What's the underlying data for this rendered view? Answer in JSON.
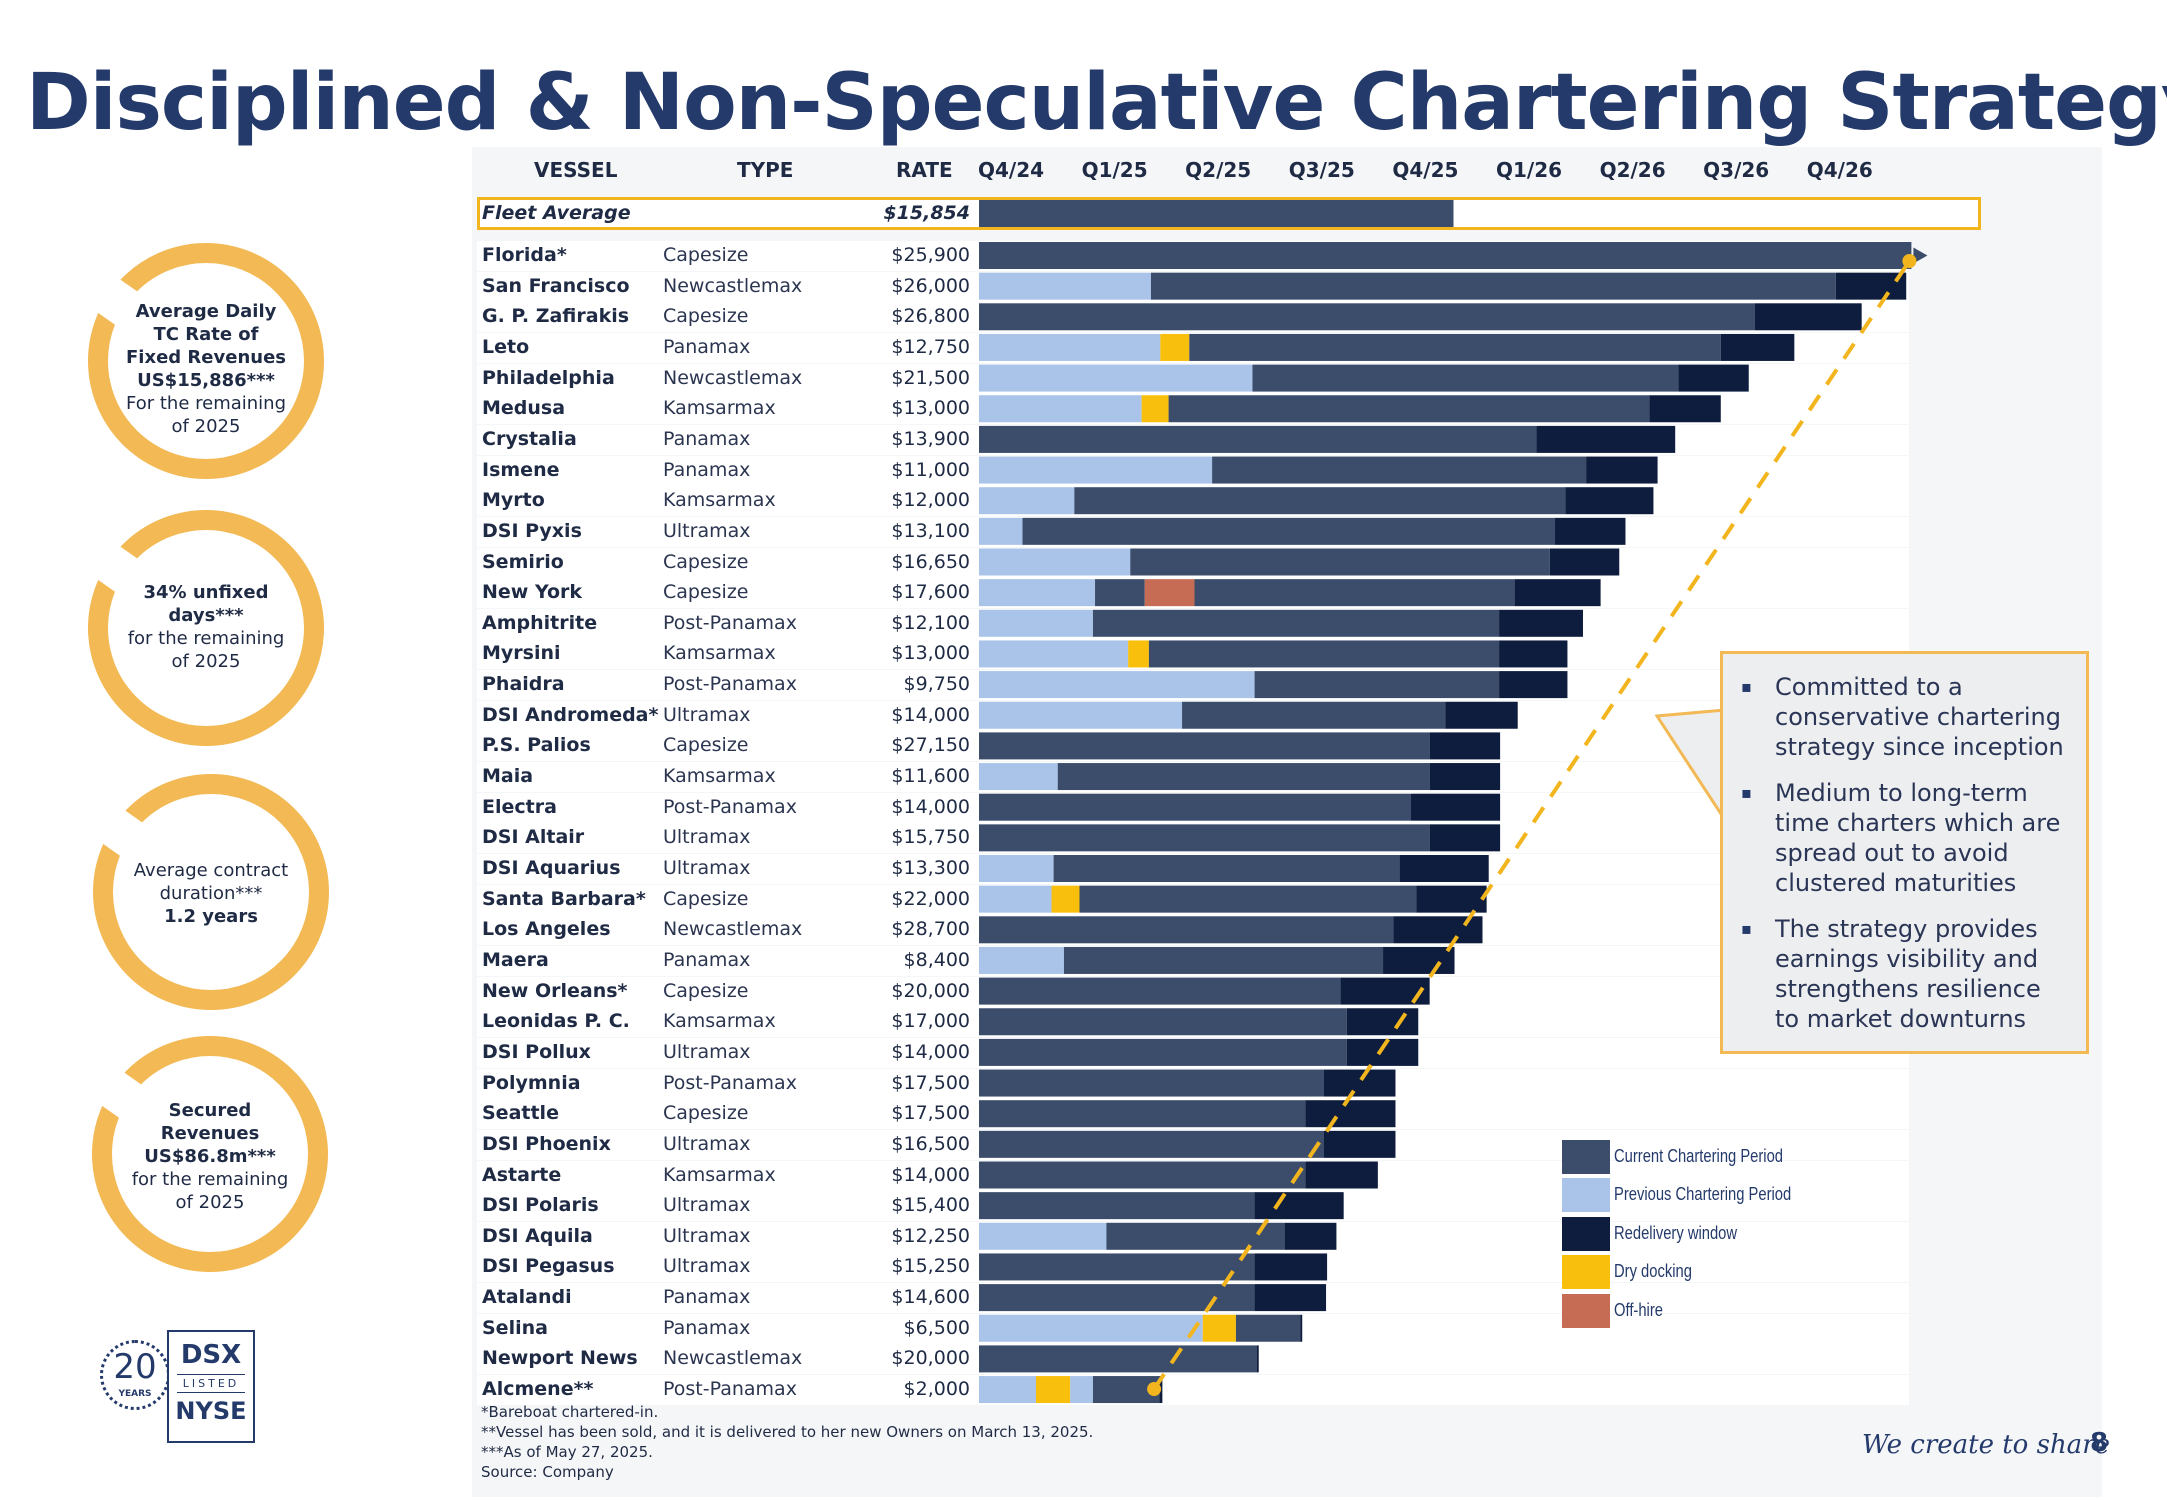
{
  "page": {
    "title": "Disciplined & Non-Speculative Chartering Strategy",
    "tagline": "We create to share",
    "page_number": "8"
  },
  "headers": {
    "vessel": "VESSEL",
    "type": "TYPE",
    "rate": "RATE"
  },
  "fleet_average": {
    "label": "Fleet Average",
    "rate": "$15,854"
  },
  "circles": [
    {
      "lines": [
        "Average Daily",
        "TC Rate of",
        "Fixed Revenues",
        "US$15,886***",
        "For the remaining",
        "of 2025"
      ]
    },
    {
      "lines": [
        "34% unfixed",
        "days***",
        "for the remaining",
        "of 2025"
      ]
    },
    {
      "lines": [
        "Average contract",
        "duration***",
        "1.2 years"
      ]
    },
    {
      "lines": [
        "Secured",
        "Revenues",
        "US$86.8m***",
        "for the remaining",
        "of 2025"
      ]
    }
  ],
  "callout": {
    "bullets": [
      "Committed to a conservative chartering strategy since inception",
      "Medium to long-term time charters which are spread out to avoid clustered maturities",
      "The strategy provides earnings visibility and strengthens resilience to market downturns"
    ]
  },
  "footnotes": [
    "*Bareboat chartered-in.",
    "**Vessel has been sold, and it is delivered to her new Owners on March 13, 2025.",
    "***As of May 27, 2025.",
    "Source: Company"
  ],
  "logo": {
    "years": "20",
    "years_word": "YEARS",
    "dsx": "DSX",
    "listed": "LISTED",
    "nyse": "NYSE"
  },
  "colors": {
    "current": "#3b4d6b",
    "previous": "#a9c4e8",
    "redelivery": "#0e1d3d",
    "drydock": "#f8bf0c",
    "offhire": "#c66c55",
    "accent": "#f2b955",
    "title": "#243a6b"
  },
  "chart_data": {
    "type": "gantt",
    "quarters": [
      "Q4/24",
      "Q1/25",
      "Q2/25",
      "Q3/25",
      "Q4/25",
      "Q1/26",
      "Q2/26",
      "Q3/26",
      "Q4/26"
    ],
    "x_unit": "quarters elapsed from start of Q4/24",
    "xlim": [
      0,
      9
    ],
    "fleet_average_end": 4.58,
    "legend": [
      {
        "key": "current",
        "label": "Current Chartering Period"
      },
      {
        "key": "previous",
        "label": "Previous Chartering Period"
      },
      {
        "key": "redelivery",
        "label": "Redelivery window"
      },
      {
        "key": "drydock",
        "label": "Dry docking"
      },
      {
        "key": "offhire",
        "label": "Off-hire"
      }
    ],
    "vessels": [
      {
        "name": "Florida*",
        "type": "Capesize",
        "rate": "$25,900",
        "segments": [
          [
            "current",
            0,
            9.0
          ]
        ],
        "arrow": true
      },
      {
        "name": "San Francisco",
        "type": "Newcastlemax",
        "rate": "$26,000",
        "segments": [
          [
            "previous",
            0,
            1.66
          ],
          [
            "current",
            1.66,
            8.27
          ],
          [
            "redelivery",
            8.27,
            8.95
          ]
        ]
      },
      {
        "name": "G. P. Zafirakis",
        "type": "Capesize",
        "rate": "$26,800",
        "segments": [
          [
            "current",
            0,
            7.49
          ],
          [
            "redelivery",
            7.49,
            8.52
          ]
        ]
      },
      {
        "name": "Leto",
        "type": "Panamax",
        "rate": "$12,750",
        "segments": [
          [
            "previous",
            0,
            1.75
          ],
          [
            "drydock",
            1.75,
            2.03
          ],
          [
            "current",
            2.03,
            7.16
          ],
          [
            "redelivery",
            7.16,
            7.87
          ]
        ]
      },
      {
        "name": "Philadelphia",
        "type": "Newcastlemax",
        "rate": "$21,500",
        "segments": [
          [
            "previous",
            0,
            2.64
          ],
          [
            "current",
            2.64,
            6.75
          ],
          [
            "redelivery",
            6.75,
            7.43
          ]
        ]
      },
      {
        "name": "Medusa",
        "type": "Kamsarmax",
        "rate": "$13,000",
        "segments": [
          [
            "previous",
            0,
            1.57
          ],
          [
            "drydock",
            1.57,
            1.83
          ],
          [
            "current",
            1.83,
            6.47
          ],
          [
            "redelivery",
            6.47,
            7.16
          ]
        ]
      },
      {
        "name": "Crystalia",
        "type": "Panamax",
        "rate": "$13,900",
        "segments": [
          [
            "current",
            0,
            5.38
          ],
          [
            "redelivery",
            5.38,
            6.72
          ]
        ]
      },
      {
        "name": "Ismene",
        "type": "Panamax",
        "rate": "$11,000",
        "segments": [
          [
            "previous",
            0,
            2.25
          ],
          [
            "current",
            2.25,
            5.86
          ],
          [
            "redelivery",
            5.86,
            6.55
          ]
        ]
      },
      {
        "name": "Myrto",
        "type": "Kamsarmax",
        "rate": "$12,000",
        "segments": [
          [
            "previous",
            0,
            0.92
          ],
          [
            "current",
            0.92,
            5.66
          ],
          [
            "redelivery",
            5.66,
            6.51
          ]
        ]
      },
      {
        "name": "DSI Pyxis",
        "type": "Ultramax",
        "rate": "$13,100",
        "segments": [
          [
            "previous",
            0,
            0.42
          ],
          [
            "current",
            0.42,
            5.56
          ],
          [
            "redelivery",
            5.56,
            6.24
          ]
        ]
      },
      {
        "name": "Semirio",
        "type": "Capesize",
        "rate": "$16,650",
        "segments": [
          [
            "previous",
            0,
            1.46
          ],
          [
            "current",
            1.46,
            5.51
          ],
          [
            "redelivery",
            5.51,
            6.18
          ]
        ]
      },
      {
        "name": "New York",
        "type": "Capesize",
        "rate": "$17,600",
        "segments": [
          [
            "previous",
            0,
            1.12
          ],
          [
            "current",
            1.12,
            1.6
          ],
          [
            "offhire",
            1.6,
            2.08
          ],
          [
            "current",
            2.08,
            5.17
          ],
          [
            "redelivery",
            5.17,
            6.0
          ]
        ]
      },
      {
        "name": "Amphitrite",
        "type": "Post-Panamax",
        "rate": "$12,100",
        "segments": [
          [
            "previous",
            0,
            1.1
          ],
          [
            "current",
            1.1,
            5.02
          ],
          [
            "redelivery",
            5.02,
            5.83
          ]
        ]
      },
      {
        "name": "Myrsini",
        "type": "Kamsarmax",
        "rate": "$13,000",
        "segments": [
          [
            "previous",
            0,
            1.44
          ],
          [
            "drydock",
            1.44,
            1.64
          ],
          [
            "current",
            1.64,
            5.02
          ],
          [
            "redelivery",
            5.02,
            5.68
          ]
        ]
      },
      {
        "name": "Phaidra",
        "type": "Post-Panamax",
        "rate": "$9,750",
        "segments": [
          [
            "previous",
            0,
            2.66
          ],
          [
            "current",
            2.66,
            5.02
          ],
          [
            "redelivery",
            5.02,
            5.68
          ]
        ]
      },
      {
        "name": "DSI Andromeda*",
        "type": "Ultramax",
        "rate": "$14,000",
        "segments": [
          [
            "previous",
            0,
            1.96
          ],
          [
            "current",
            1.96,
            4.5
          ],
          [
            "redelivery",
            4.5,
            5.2
          ]
        ]
      },
      {
        "name": "P.S. Palios",
        "type": "Capesize",
        "rate": "$27,150",
        "segments": [
          [
            "current",
            0,
            4.35
          ],
          [
            "redelivery",
            4.35,
            5.03
          ]
        ]
      },
      {
        "name": "Maia",
        "type": "Kamsarmax",
        "rate": "$11,600",
        "segments": [
          [
            "previous",
            0,
            0.76
          ],
          [
            "current",
            0.76,
            4.35
          ],
          [
            "redelivery",
            4.35,
            5.03
          ]
        ]
      },
      {
        "name": "Electra",
        "type": "Post-Panamax",
        "rate": "$14,000",
        "segments": [
          [
            "current",
            0,
            4.17
          ],
          [
            "redelivery",
            4.17,
            5.03
          ]
        ]
      },
      {
        "name": "DSI Altair",
        "type": "Ultramax",
        "rate": "$15,750",
        "segments": [
          [
            "current",
            0,
            4.35
          ],
          [
            "redelivery",
            4.35,
            5.03
          ]
        ]
      },
      {
        "name": "DSI Aquarius",
        "type": "Ultramax",
        "rate": "$13,300",
        "segments": [
          [
            "previous",
            0,
            0.72
          ],
          [
            "current",
            0.72,
            4.06
          ],
          [
            "redelivery",
            4.06,
            4.92
          ]
        ]
      },
      {
        "name": "Santa Barbara*",
        "type": "Capesize",
        "rate": "$22,000",
        "segments": [
          [
            "previous",
            0,
            0.7
          ],
          [
            "drydock",
            0.7,
            0.97
          ],
          [
            "current",
            0.97,
            4.22
          ],
          [
            "redelivery",
            4.22,
            4.9
          ]
        ]
      },
      {
        "name": "Los Angeles",
        "type": "Newcastlemax",
        "rate": "$28,700",
        "segments": [
          [
            "current",
            0,
            4.0
          ],
          [
            "redelivery",
            4.0,
            4.86
          ]
        ]
      },
      {
        "name": "Maera",
        "type": "Panamax",
        "rate": "$8,400",
        "segments": [
          [
            "previous",
            0,
            0.82
          ],
          [
            "current",
            0.82,
            3.9
          ],
          [
            "redelivery",
            3.9,
            4.59
          ]
        ]
      },
      {
        "name": "New Orleans*",
        "type": "Capesize",
        "rate": "$20,000",
        "segments": [
          [
            "current",
            0,
            3.49
          ],
          [
            "redelivery",
            3.49,
            4.35
          ]
        ]
      },
      {
        "name": "Leonidas P. C.",
        "type": "Kamsarmax",
        "rate": "$17,000",
        "segments": [
          [
            "current",
            0,
            3.55
          ],
          [
            "redelivery",
            3.55,
            4.24
          ]
        ]
      },
      {
        "name": "DSI Pollux",
        "type": "Ultramax",
        "rate": "$14,000",
        "segments": [
          [
            "current",
            0,
            3.55
          ],
          [
            "redelivery",
            3.55,
            4.24
          ]
        ]
      },
      {
        "name": "Polymnia",
        "type": "Post-Panamax",
        "rate": "$17,500",
        "segments": [
          [
            "current",
            0,
            3.33
          ],
          [
            "redelivery",
            3.33,
            4.02
          ]
        ]
      },
      {
        "name": "Seattle",
        "type": "Capesize",
        "rate": "$17,500",
        "segments": [
          [
            "current",
            0,
            3.15
          ],
          [
            "redelivery",
            3.15,
            4.02
          ]
        ]
      },
      {
        "name": "DSI Phoenix",
        "type": "Ultramax",
        "rate": "$16,500",
        "segments": [
          [
            "current",
            0,
            3.33
          ],
          [
            "redelivery",
            3.33,
            4.02
          ]
        ]
      },
      {
        "name": "Astarte",
        "type": "Kamsarmax",
        "rate": "$14,000",
        "segments": [
          [
            "current",
            0,
            3.15
          ],
          [
            "redelivery",
            3.15,
            3.85
          ]
        ]
      },
      {
        "name": "DSI Polaris",
        "type": "Ultramax",
        "rate": "$15,400",
        "segments": [
          [
            "current",
            0,
            2.66
          ],
          [
            "redelivery",
            2.66,
            3.52
          ]
        ]
      },
      {
        "name": "DSI Aquila",
        "type": "Ultramax",
        "rate": "$12,250",
        "segments": [
          [
            "previous",
            0,
            1.23
          ],
          [
            "current",
            1.23,
            2.95
          ],
          [
            "redelivery",
            2.95,
            3.45
          ]
        ]
      },
      {
        "name": "DSI Pegasus",
        "type": "Ultramax",
        "rate": "$15,250",
        "segments": [
          [
            "current",
            0,
            2.66
          ],
          [
            "redelivery",
            2.66,
            3.36
          ]
        ]
      },
      {
        "name": "Atalandi",
        "type": "Panamax",
        "rate": "$14,600",
        "segments": [
          [
            "current",
            0,
            2.66
          ],
          [
            "redelivery",
            2.66,
            3.35
          ]
        ]
      },
      {
        "name": "Selina",
        "type": "Panamax",
        "rate": "$6,500",
        "segments": [
          [
            "previous",
            0,
            2.16
          ],
          [
            "drydock",
            2.16,
            2.48
          ],
          [
            "current",
            2.48,
            3.1
          ],
          [
            "redelivery",
            3.1,
            3.12
          ]
        ]
      },
      {
        "name": "Newport News",
        "type": "Newcastlemax",
        "rate": "$20,000",
        "segments": [
          [
            "current",
            0,
            2.68
          ],
          [
            "redelivery",
            2.68,
            2.7
          ]
        ]
      },
      {
        "name": "Alcmene**",
        "type": "Post-Panamax",
        "rate": "$2,000",
        "segments": [
          [
            "previous",
            0,
            0.55
          ],
          [
            "drydock",
            0.55,
            0.88
          ],
          [
            "previous",
            0.88,
            1.1
          ],
          [
            "current",
            1.1,
            1.74
          ],
          [
            "redelivery",
            1.74,
            1.77
          ]
        ]
      }
    ],
    "trend_line": {
      "from": {
        "vessel": "Alcmene**",
        "quarter": 1.69
      },
      "to": {
        "vessel": "Florida*",
        "quarter": 9.0
      },
      "style": "dashed"
    }
  }
}
